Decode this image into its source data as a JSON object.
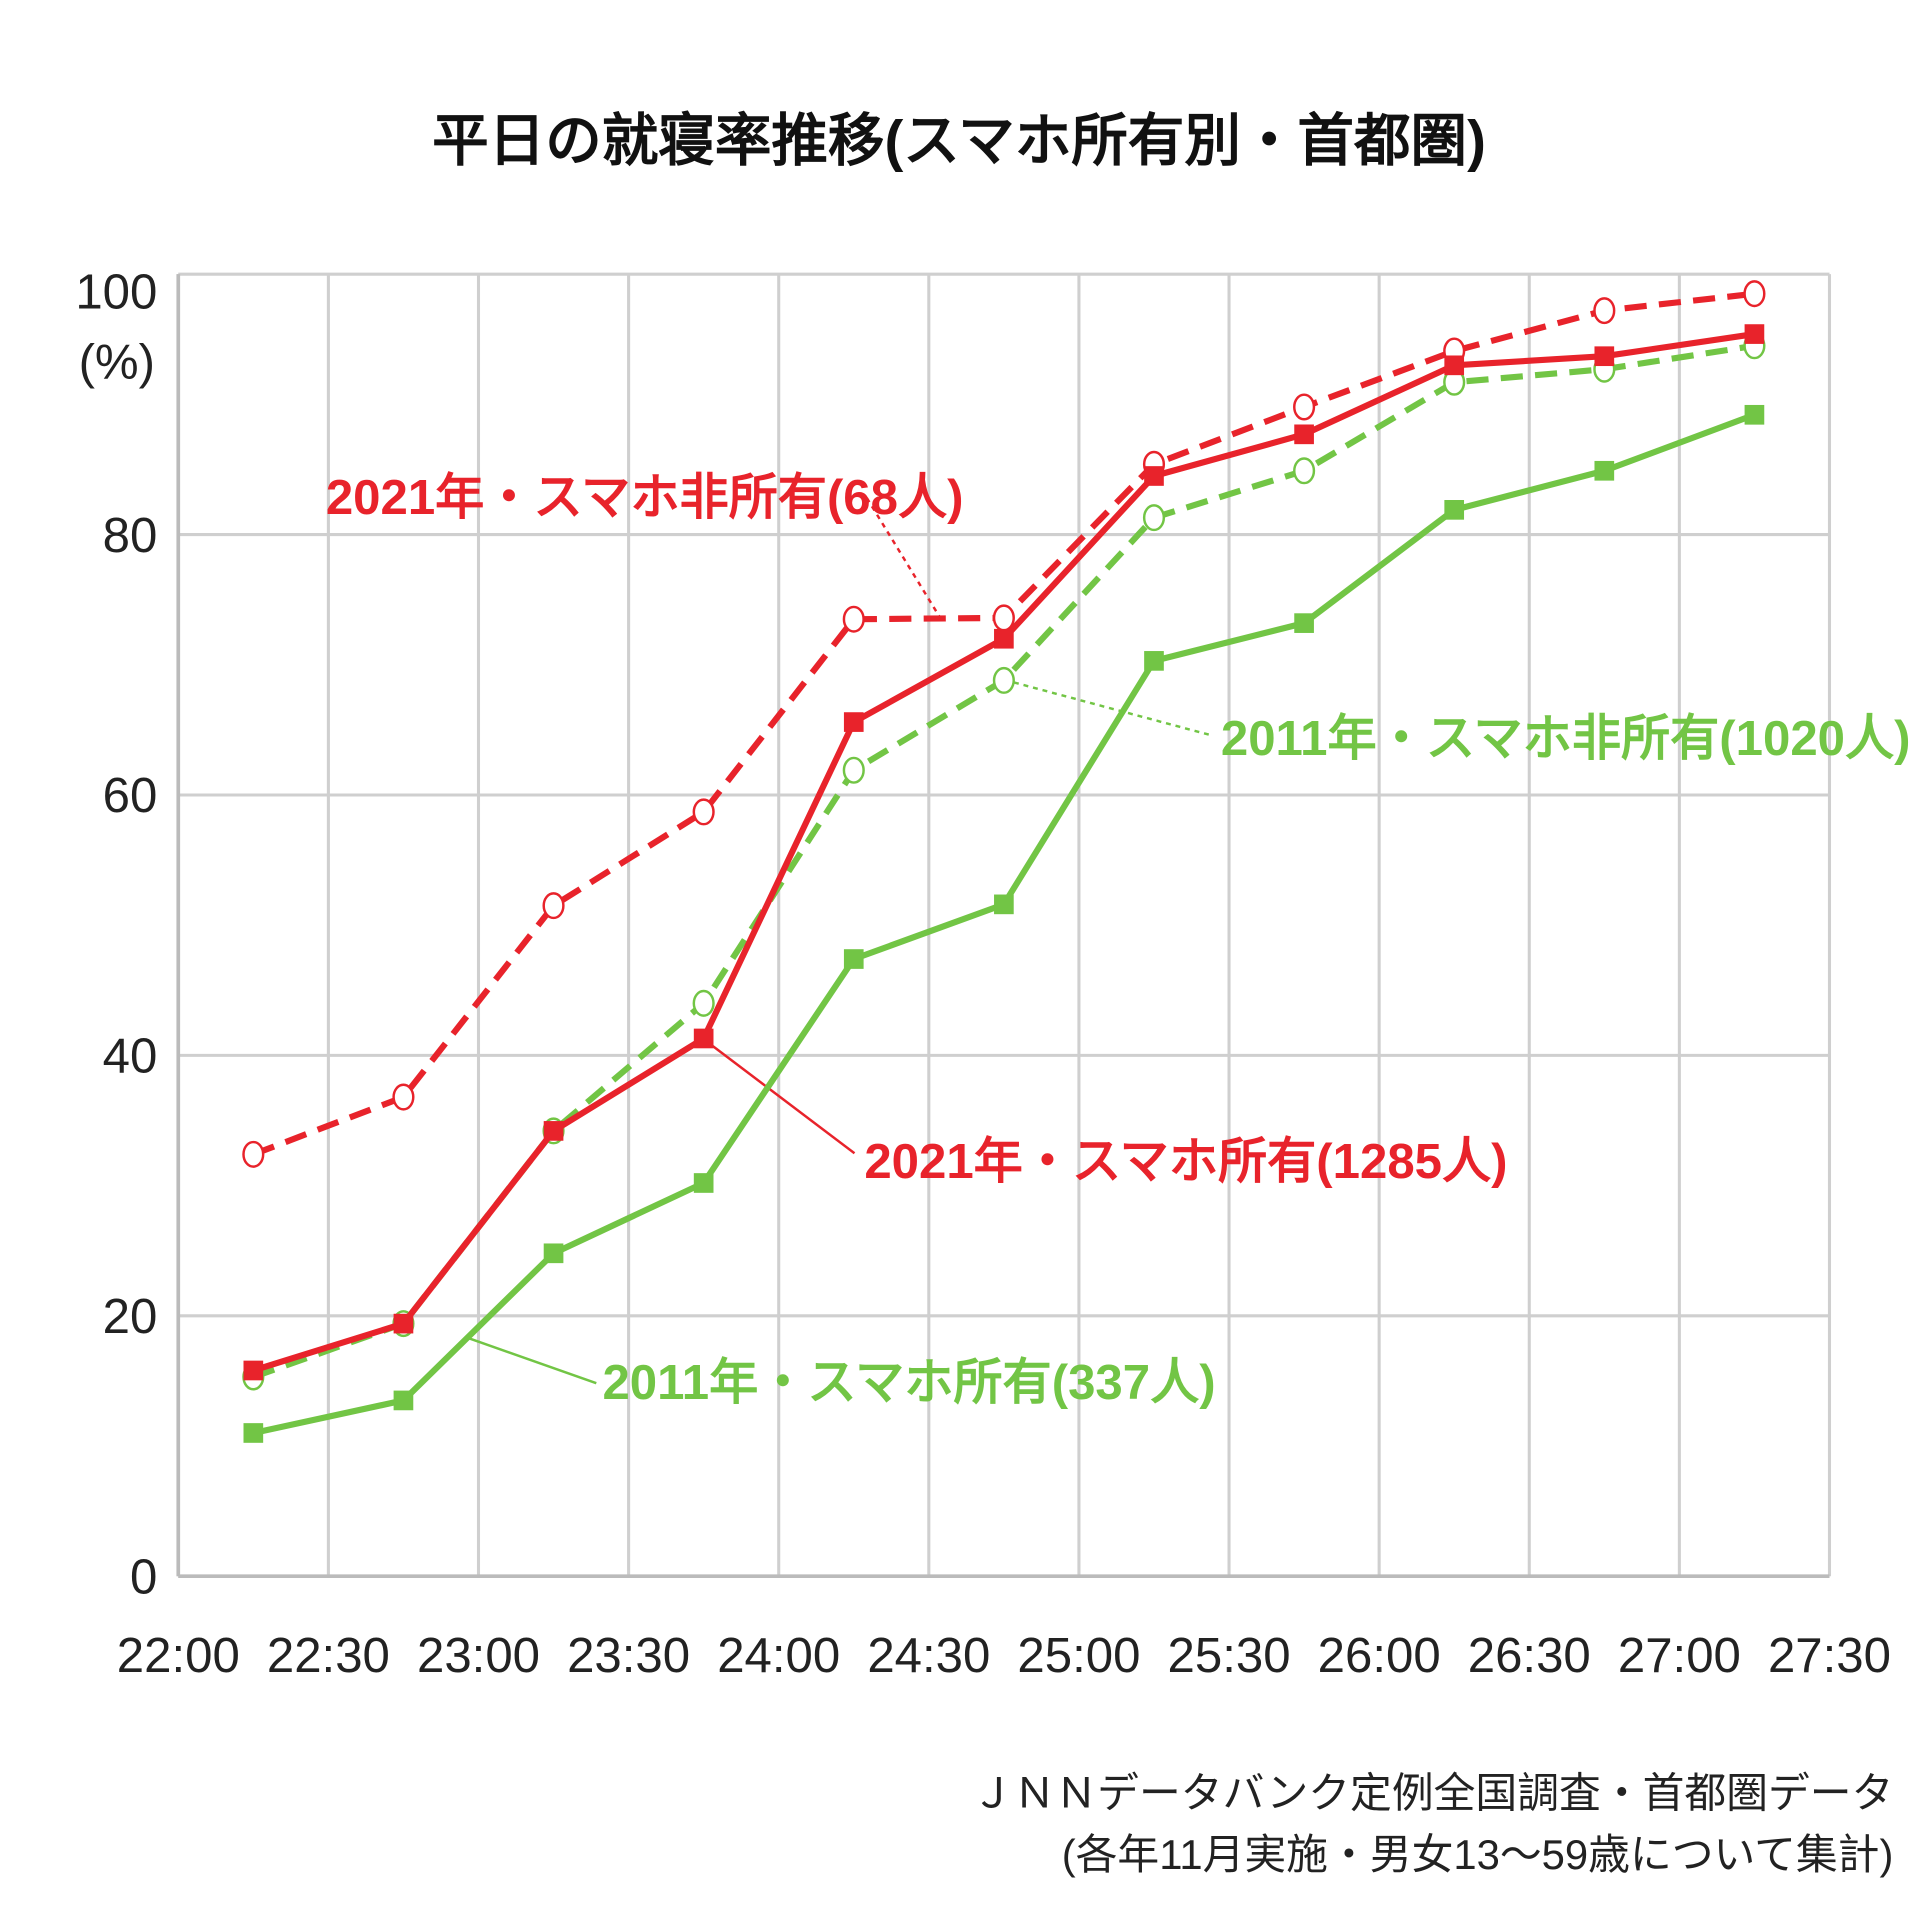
{
  "chart_data": {
    "type": "line",
    "title": "平日の就寝率推移(スマホ所有別・首都圏)",
    "ylabel_unit": "(%)",
    "x_ticks": [
      "22:00",
      "22:30",
      "23:00",
      "23:30",
      "24:00",
      "24:30",
      "25:00",
      "25:30",
      "26:00",
      "26:30",
      "27:00",
      "27:30"
    ],
    "y_ticks": [
      0,
      20,
      40,
      60,
      80,
      100
    ],
    "ylim": [
      0,
      100
    ],
    "x": [
      "22:15",
      "22:45",
      "23:15",
      "23:45",
      "24:15",
      "24:45",
      "25:15",
      "25:45",
      "26:15",
      "26:45",
      "27:15"
    ],
    "grid": true,
    "series": [
      {
        "name": "2021年・スマホ非所有(68人)",
        "color": "#e8232b",
        "dashed": true,
        "marker": "open-circle",
        "values": [
          32.4,
          36.8,
          51.5,
          58.7,
          73.5,
          73.6,
          85.4,
          89.8,
          94.1,
          97.2,
          98.5
        ]
      },
      {
        "name": "2021年・スマホ所有(1285人)",
        "color": "#e8232b",
        "dashed": false,
        "marker": "square",
        "values": [
          15.8,
          19.4,
          34.2,
          41.3,
          65.6,
          72.0,
          84.5,
          87.7,
          93.0,
          93.7,
          95.4
        ]
      },
      {
        "name": "2011年・スマホ非所有(1020人)",
        "color": "#72c545",
        "dashed": true,
        "marker": "open-circle",
        "values": [
          15.3,
          19.4,
          34.2,
          44.0,
          61.9,
          68.8,
          81.3,
          84.9,
          91.7,
          92.7,
          94.5
        ]
      },
      {
        "name": "2011年・スマホ所有(337人)",
        "color": "#72c545",
        "dashed": false,
        "marker": "square",
        "values": [
          11.0,
          13.5,
          24.8,
          30.2,
          47.4,
          51.6,
          70.3,
          73.2,
          81.9,
          84.9,
          89.2
        ]
      }
    ],
    "source_line1": "ＪＮＮデータバンク定例全国調査・首都圏データ",
    "source_line2": "(各年11月実施・男女13〜59歳について集計)"
  }
}
